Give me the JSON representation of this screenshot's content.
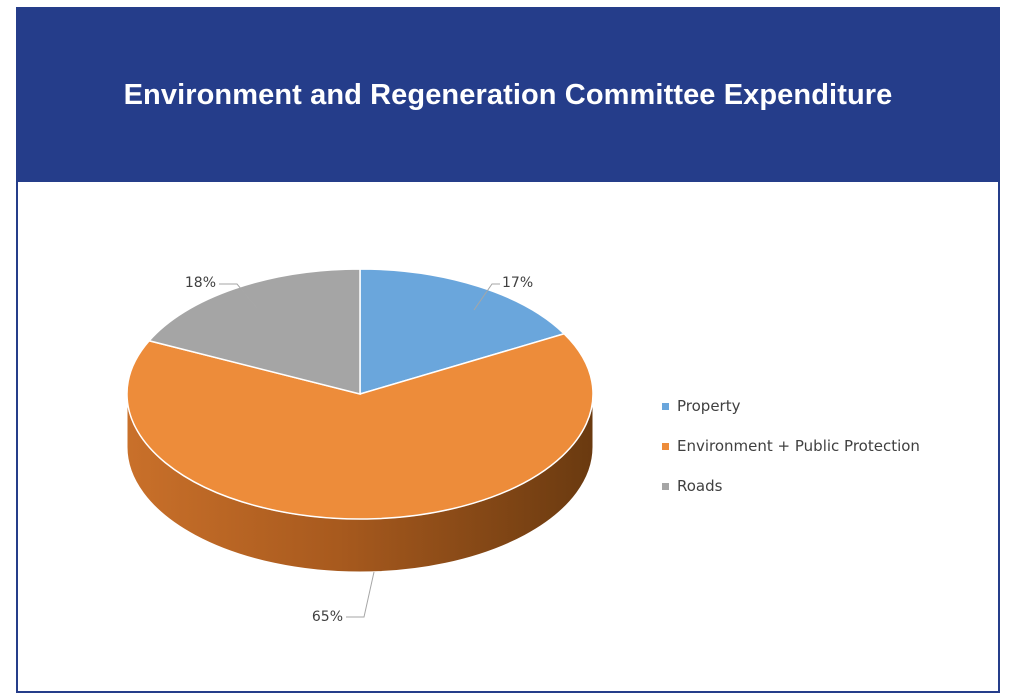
{
  "chart_data": {
    "type": "pie",
    "title": "Environment and Regeneration Committee Expenditure",
    "categories": [
      "Property",
      "Environment + Public Protection",
      "Roads"
    ],
    "values": [
      17,
      65,
      18
    ],
    "labels": [
      "17%",
      "65%",
      "18%"
    ],
    "colors": [
      "#6aa6dc",
      "#ed8c3a",
      "#a5a5a5"
    ],
    "style": "3d",
    "legend_position": "right"
  }
}
